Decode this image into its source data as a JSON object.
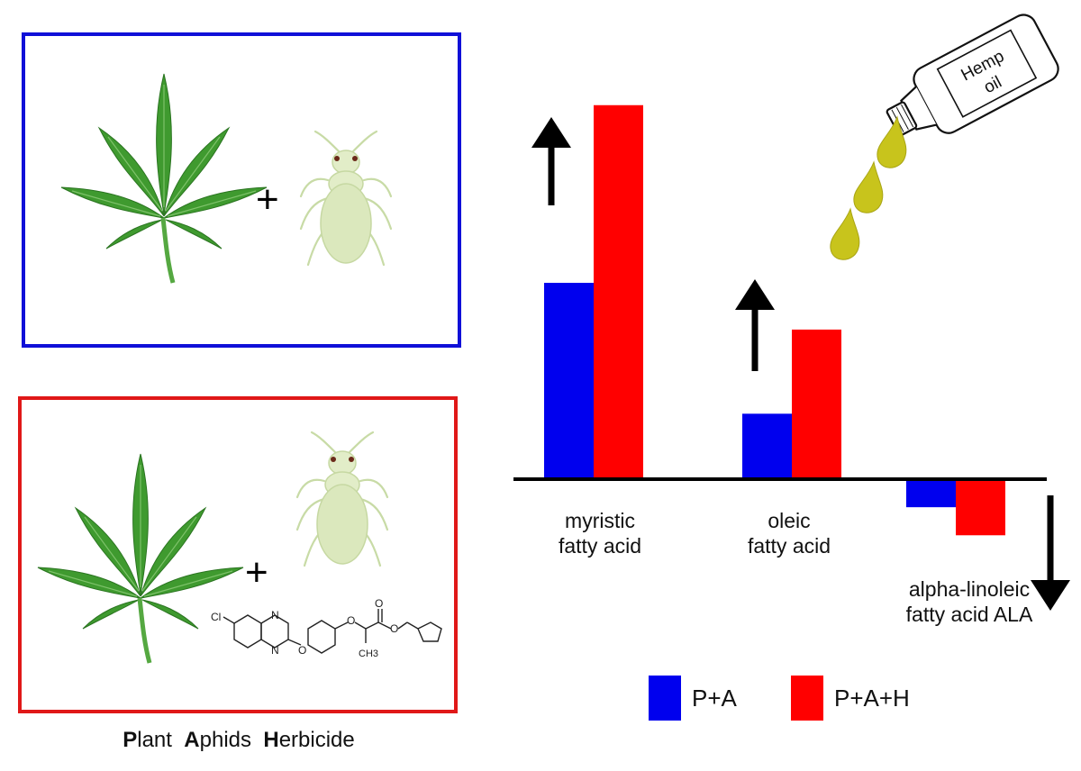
{
  "caption": {
    "word1_initial": "P",
    "word1_rest": "lant",
    "word2_initial": "A",
    "word2_rest": "phids",
    "word3_initial": "H",
    "word3_rest": "erbicide"
  },
  "panels": [
    {
      "id": "pa",
      "border_color": "#1010d8",
      "plus": "+",
      "items": [
        "leaf-icon",
        "aphid-icon"
      ]
    },
    {
      "id": "pah",
      "border_color": "#e01818",
      "plus": "+",
      "items": [
        "leaf-icon",
        "aphid-icon",
        "herbicide-structure"
      ]
    }
  ],
  "molecule": {
    "cl": "Cl",
    "n1": "N",
    "n2": "N",
    "o1": "O",
    "o2": "O",
    "o3": "O",
    "o4": "O",
    "ch3": "CH3"
  },
  "bottle": {
    "label_line1": "Hemp",
    "label_line2": "oil",
    "oil_color": "#c8c41c"
  },
  "chart_data": {
    "type": "bar",
    "categories": [
      {
        "line1": "myristic",
        "line2": "fatty acid",
        "direction": "up"
      },
      {
        "line1": "oleic",
        "line2": "fatty acid",
        "direction": "up"
      },
      {
        "line1": "alpha-linoleic",
        "line2": "fatty acid ALA",
        "direction": "down"
      }
    ],
    "series": [
      {
        "name": "P+A",
        "color": "#0000ee",
        "values": [
          42,
          14,
          -6
        ]
      },
      {
        "name": "P+A+H",
        "color": "#ff0000",
        "values": [
          80,
          32,
          -12
        ]
      }
    ],
    "ylim": [
      -14,
      84
    ],
    "legend_position": "bottom"
  }
}
